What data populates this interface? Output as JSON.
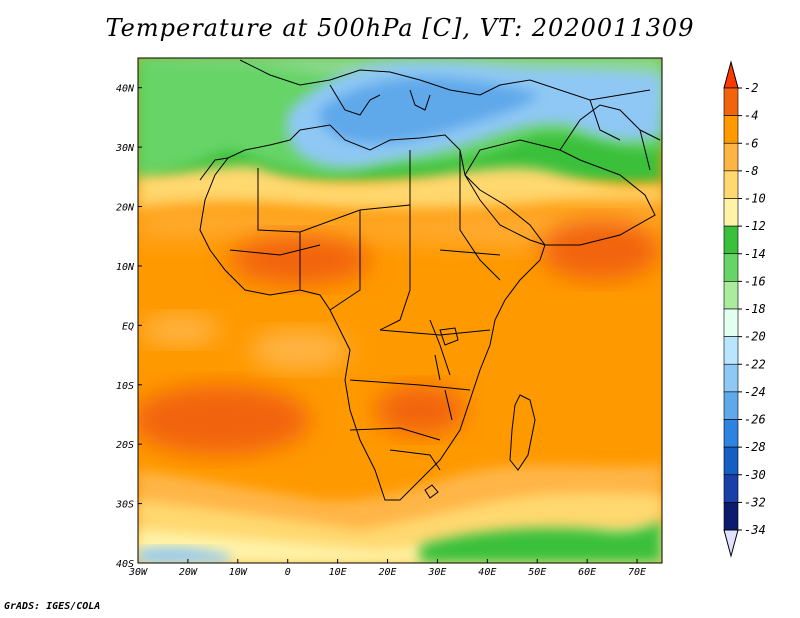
{
  "title": "Temperature at 500hPa [C], VT: 2020011309",
  "footer": "GrADS: IGES/COLA",
  "map": {
    "lon_range": [
      -30,
      75
    ],
    "lat_range": [
      -40,
      45
    ],
    "lon_ticks": [
      "30W",
      "20W",
      "10W",
      "0",
      "10E",
      "20E",
      "30E",
      "40E",
      "50E",
      "60E",
      "70E"
    ],
    "lat_ticks": [
      "40N",
      "30N",
      "20N",
      "10N",
      "EQ",
      "10S",
      "20S",
      "30S",
      "40S"
    ]
  },
  "colorbar": {
    "labels": [
      "-2",
      "-4",
      "-6",
      "-8",
      "-10",
      "-12",
      "-14",
      "-16",
      "-18",
      "-20",
      "-22",
      "-24",
      "-26",
      "-28",
      "-30",
      "-32",
      "-34"
    ],
    "colors": [
      "#ff3a00",
      "#f2630d",
      "#ff9900",
      "#ffb546",
      "#ffd86f",
      "#fff3a8",
      "#3ac03a",
      "#66d466",
      "#aaeb9e",
      "#e2ffef",
      "#b8e6ff",
      "#8fc8f4",
      "#5fa8ea",
      "#2f83e0",
      "#155ec2",
      "#1a3fa8",
      "#0b1c6e",
      "#e0e0ff"
    ]
  }
}
